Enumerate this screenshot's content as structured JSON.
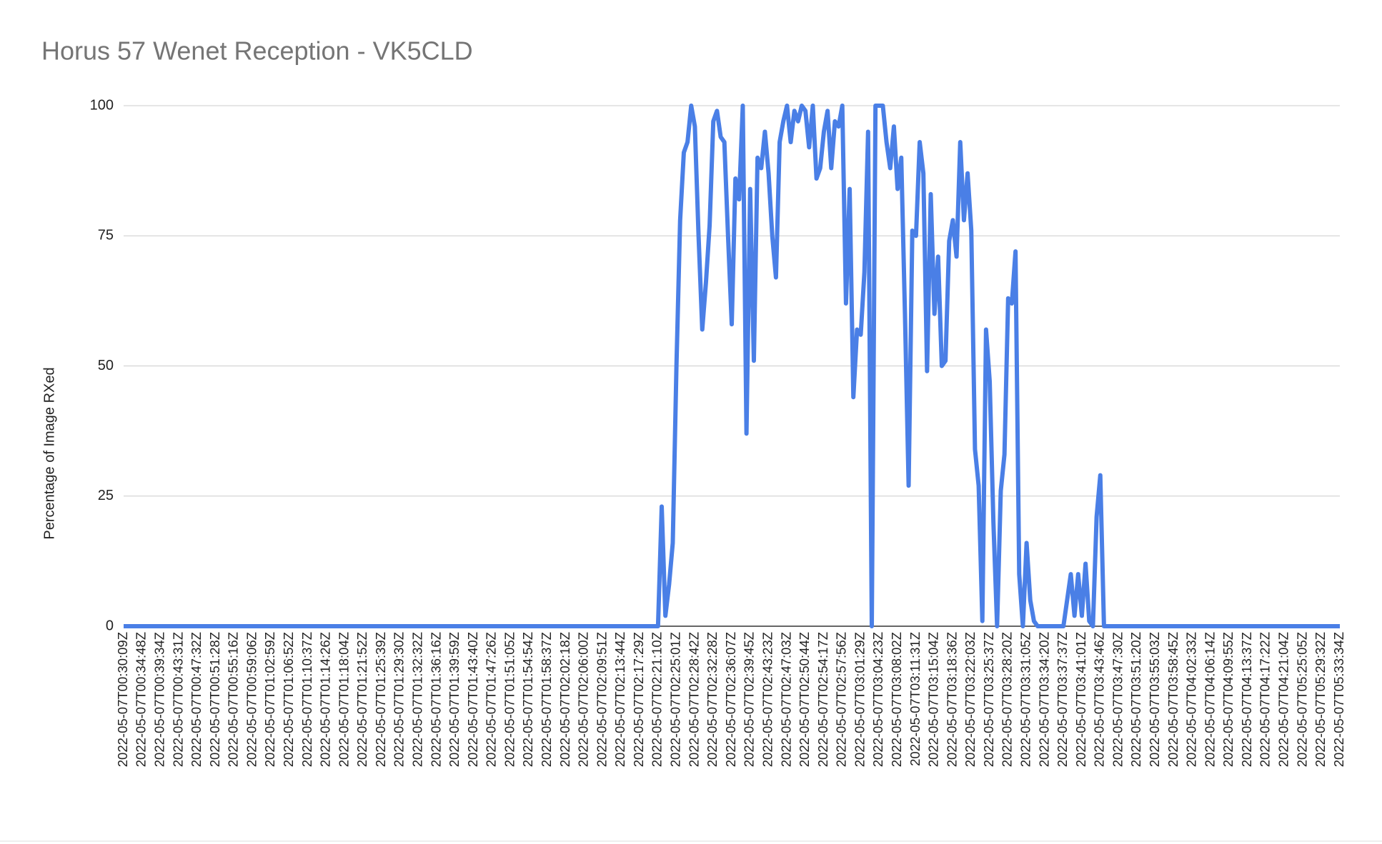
{
  "chart_data": {
    "type": "line",
    "title": "Horus 57 Wenet Reception - VK5CLD",
    "y_label": "Percentage of Image RXed",
    "color": "#4a7fe6",
    "grid": true,
    "ylim": [
      0,
      100
    ],
    "yticks": [
      0,
      25,
      50,
      75,
      100
    ],
    "categories": [
      "2022-05-07T00:30:09Z",
      null,
      null,
      null,
      null,
      "2022-05-07T00:34:48Z",
      null,
      null,
      null,
      null,
      "2022-05-07T00:39:34Z",
      null,
      null,
      null,
      null,
      "2022-05-07T00:43:31Z",
      null,
      null,
      null,
      null,
      "2022-05-07T00:47:32Z",
      null,
      null,
      null,
      null,
      "2022-05-07T00:51:28Z",
      null,
      null,
      null,
      null,
      "2022-05-07T00:55:16Z",
      null,
      null,
      null,
      null,
      "2022-05-07T00:59:06Z",
      null,
      null,
      null,
      null,
      "2022-05-07T01:02:59Z",
      null,
      null,
      null,
      null,
      "2022-05-07T01:06:52Z",
      null,
      null,
      null,
      null,
      "2022-05-07T01:10:37Z",
      null,
      null,
      null,
      null,
      "2022-05-07T01:14:26Z",
      null,
      null,
      null,
      null,
      "2022-05-07T01:18:04Z",
      null,
      null,
      null,
      null,
      "2022-05-07T01:21:52Z",
      null,
      null,
      null,
      null,
      "2022-05-07T01:25:39Z",
      null,
      null,
      null,
      null,
      "2022-05-07T01:29:30Z",
      null,
      null,
      null,
      null,
      "2022-05-07T01:32:32Z",
      null,
      null,
      null,
      null,
      "2022-05-07T01:36:16Z",
      null,
      null,
      null,
      null,
      "2022-05-07T01:39:59Z",
      null,
      null,
      null,
      null,
      "2022-05-07T01:43:40Z",
      null,
      null,
      null,
      null,
      "2022-05-07T01:47:26Z",
      null,
      null,
      null,
      null,
      "2022-05-07T01:51:05Z",
      null,
      null,
      null,
      null,
      "2022-05-07T01:54:54Z",
      null,
      null,
      null,
      null,
      "2022-05-07T01:58:37Z",
      null,
      null,
      null,
      null,
      "2022-05-07T02:02:18Z",
      null,
      null,
      null,
      null,
      "2022-05-07T02:06:00Z",
      null,
      null,
      null,
      null,
      "2022-05-07T02:09:51Z",
      null,
      null,
      null,
      null,
      "2022-05-07T02:13:44Z",
      null,
      null,
      null,
      null,
      "2022-05-07T02:17:29Z",
      null,
      null,
      null,
      null,
      "2022-05-07T02:21:10Z",
      null,
      null,
      null,
      null,
      "2022-05-07T02:25:01Z",
      null,
      null,
      null,
      null,
      "2022-05-07T02:28:42Z",
      null,
      null,
      null,
      null,
      "2022-05-07T02:32:28Z",
      null,
      null,
      null,
      null,
      "2022-05-07T02:36:07Z",
      null,
      null,
      null,
      null,
      "2022-05-07T02:39:45Z",
      null,
      null,
      null,
      null,
      "2022-05-07T02:43:23Z",
      null,
      null,
      null,
      null,
      "2022-05-07T02:47:03Z",
      null,
      null,
      null,
      null,
      "2022-05-07T02:50:44Z",
      null,
      null,
      null,
      null,
      "2022-05-07T02:54:17Z",
      null,
      null,
      null,
      null,
      "2022-05-07T02:57:56Z",
      null,
      null,
      null,
      null,
      "2022-05-07T03:01:29Z",
      null,
      null,
      null,
      null,
      "2022-05-07T03:04:23Z",
      null,
      null,
      null,
      null,
      "2022-05-07T03:08:02Z",
      null,
      null,
      null,
      null,
      "2022-05-07T03:11:31Z",
      null,
      null,
      null,
      null,
      "2022-05-07T03:15:04Z",
      null,
      null,
      null,
      null,
      "2022-05-07T03:18:36Z",
      null,
      null,
      null,
      null,
      "2022-05-07T03:22:03Z",
      null,
      null,
      null,
      null,
      "2022-05-07T03:25:37Z",
      null,
      null,
      null,
      null,
      "2022-05-07T03:28:20Z",
      null,
      null,
      null,
      null,
      "2022-05-07T03:31:05Z",
      null,
      null,
      null,
      null,
      "2022-05-07T03:34:20Z",
      null,
      null,
      null,
      null,
      "2022-05-07T03:37:37Z",
      null,
      null,
      null,
      null,
      "2022-05-07T03:41:01Z",
      null,
      null,
      null,
      null,
      "2022-05-07T03:43:46Z",
      null,
      null,
      null,
      null,
      "2022-05-07T03:47:30Z",
      null,
      null,
      null,
      null,
      "2022-05-07T03:51:20Z",
      null,
      null,
      null,
      null,
      "2022-05-07T03:55:03Z",
      null,
      null,
      null,
      null,
      "2022-05-07T03:58:45Z",
      null,
      null,
      null,
      null,
      "2022-05-07T04:02:33Z",
      null,
      null,
      null,
      null,
      "2022-05-07T04:06:14Z",
      null,
      null,
      null,
      null,
      "2022-05-07T04:09:55Z",
      null,
      null,
      null,
      null,
      "2022-05-07T04:13:37Z",
      null,
      null,
      null,
      null,
      "2022-05-07T04:17:22Z",
      null,
      null,
      null,
      null,
      "2022-05-07T04:21:04Z",
      null,
      null,
      null,
      null,
      "2022-05-07T05:25:05Z",
      null,
      null,
      null,
      null,
      "2022-05-07T05:29:32Z",
      null,
      null,
      null,
      null,
      "2022-05-07T05:33:34Z"
    ],
    "values": [
      0,
      0,
      0,
      0,
      0,
      0,
      0,
      0,
      0,
      0,
      0,
      0,
      0,
      0,
      0,
      0,
      0,
      0,
      0,
      0,
      0,
      0,
      0,
      0,
      0,
      0,
      0,
      0,
      0,
      0,
      0,
      0,
      0,
      0,
      0,
      0,
      0,
      0,
      0,
      0,
      0,
      0,
      0,
      0,
      0,
      0,
      0,
      0,
      0,
      0,
      0,
      0,
      0,
      0,
      0,
      0,
      0,
      0,
      0,
      0,
      0,
      0,
      0,
      0,
      0,
      0,
      0,
      0,
      0,
      0,
      0,
      0,
      0,
      0,
      0,
      0,
      0,
      0,
      0,
      0,
      0,
      0,
      0,
      0,
      0,
      0,
      0,
      0,
      0,
      0,
      0,
      0,
      0,
      0,
      0,
      0,
      0,
      0,
      0,
      0,
      0,
      0,
      0,
      0,
      0,
      0,
      0,
      0,
      0,
      0,
      0,
      0,
      0,
      0,
      0,
      0,
      0,
      0,
      0,
      0,
      0,
      0,
      0,
      0,
      0,
      0,
      0,
      0,
      0,
      0,
      0,
      0,
      0,
      0,
      0,
      0,
      0,
      0,
      0,
      0,
      0,
      0,
      0,
      0,
      0,
      0,
      23,
      2,
      8,
      16,
      50,
      78,
      91,
      93,
      100,
      96,
      75,
      57,
      66,
      77,
      97,
      99,
      94,
      93,
      75,
      58,
      86,
      82,
      100,
      37,
      84,
      51,
      90,
      88,
      95,
      87,
      75,
      67,
      93,
      97,
      100,
      93,
      99,
      97,
      100,
      99,
      92,
      100,
      86,
      88,
      95,
      99,
      88,
      97,
      96,
      100,
      62,
      84,
      44,
      57,
      56,
      68,
      95,
      0,
      100,
      100,
      100,
      93,
      88,
      96,
      84,
      90,
      60,
      27,
      76,
      75,
      93,
      87,
      49,
      83,
      60,
      71,
      50,
      51,
      74,
      78,
      71,
      93,
      78,
      87,
      76,
      34,
      27,
      1,
      57,
      47,
      20,
      0,
      26,
      33,
      63,
      62,
      72,
      10,
      0,
      16,
      5,
      1,
      0,
      0,
      0,
      0,
      0,
      0,
      0,
      0,
      5,
      10,
      2,
      10,
      2,
      12,
      1,
      0,
      21,
      29,
      0,
      0,
      0,
      0,
      0,
      0,
      0,
      0,
      0,
      0,
      0,
      0,
      0,
      0,
      0,
      0,
      0,
      0,
      0,
      0,
      0,
      0,
      0,
      0,
      0,
      0,
      0,
      0,
      0,
      0,
      0,
      0,
      0,
      0,
      0,
      0,
      0,
      0,
      0,
      0,
      0,
      0,
      0,
      0,
      0,
      0,
      0,
      0,
      0,
      0,
      0,
      0,
      0,
      0,
      0,
      0,
      0,
      0,
      0,
      0,
      0,
      0,
      0,
      0,
      0
    ]
  }
}
